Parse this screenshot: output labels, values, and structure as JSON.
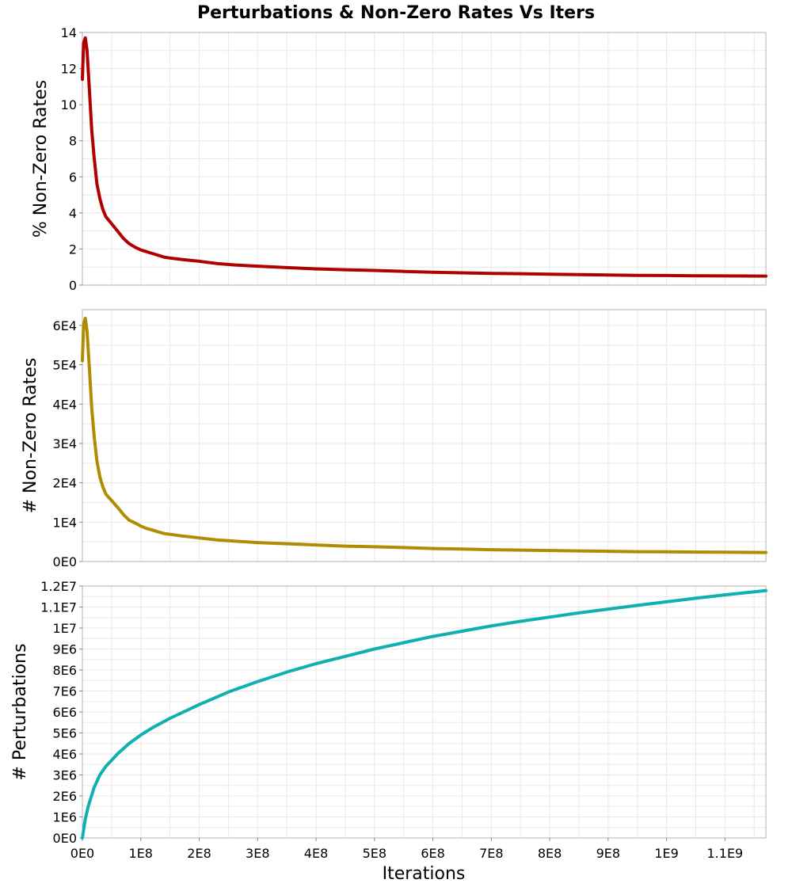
{
  "chart_data": {
    "type": "line",
    "title": "Perturbations & Non-Zero Rates Vs Iters",
    "xlabel": "Iterations",
    "x_ticks": [
      "0E0",
      "1E8",
      "2E8",
      "3E8",
      "4E8",
      "5E8",
      "6E8",
      "7E8",
      "8E8",
      "9E8",
      "1E9",
      "1.1E9"
    ],
    "xlim": [
      0,
      1170000000
    ],
    "grid": true,
    "panels": [
      {
        "ylabel": "% Non-Zero Rates",
        "ylim": [
          0,
          14
        ],
        "y_ticks": [
          "0",
          "2",
          "4",
          "6",
          "8",
          "10",
          "12",
          "14"
        ],
        "color": "#b00000",
        "series": [
          {
            "x": [
              0,
              2000000,
              5000000,
              8000000,
              12000000,
              16000000,
              20000000,
              25000000,
              30000000,
              35000000,
              40000000,
              45000000,
              50000000,
              60000000,
              70000000,
              80000000,
              90000000,
              100000000,
              110000000,
              120000000,
              130000000,
              140000000,
              150000000,
              170000000,
              200000000,
              230000000,
              260000000,
              300000000,
              350000000,
              400000000,
              450000000,
              500000000,
              550000000,
              600000000,
              650000000,
              700000000,
              750000000,
              800000000,
              850000000,
              900000000,
              950000000,
              1000000000,
              1050000000,
              1100000000,
              1170000000
            ],
            "y": [
              11.4,
              13.4,
              13.7,
              13.0,
              10.8,
              8.6,
              7.1,
              5.6,
              4.8,
              4.2,
              3.8,
              3.6,
              3.4,
              3.0,
              2.6,
              2.3,
              2.1,
              1.95,
              1.85,
              1.75,
              1.65,
              1.55,
              1.5,
              1.42,
              1.32,
              1.2,
              1.12,
              1.05,
              0.97,
              0.9,
              0.85,
              0.81,
              0.76,
              0.71,
              0.68,
              0.65,
              0.63,
              0.6,
              0.58,
              0.56,
              0.54,
              0.53,
              0.52,
              0.51,
              0.5
            ]
          }
        ]
      },
      {
        "ylabel": "# Non-Zero Rates",
        "ylim": [
          0,
          64000
        ],
        "y_ticks": [
          "0E0",
          "1E4",
          "2E4",
          "3E4",
          "4E4",
          "5E4",
          "6E4"
        ],
        "color": "#b08c00",
        "series": [
          {
            "x": [
              0,
              2000000,
              5000000,
              8000000,
              12000000,
              16000000,
              20000000,
              25000000,
              30000000,
              35000000,
              40000000,
              45000000,
              50000000,
              60000000,
              70000000,
              80000000,
              90000000,
              100000000,
              110000000,
              120000000,
              130000000,
              140000000,
              150000000,
              170000000,
              200000000,
              230000000,
              260000000,
              300000000,
              350000000,
              400000000,
              450000000,
              500000000,
              550000000,
              600000000,
              650000000,
              700000000,
              750000000,
              800000000,
              850000000,
              900000000,
              950000000,
              1000000000,
              1050000000,
              1100000000,
              1170000000
            ],
            "y": [
              51000,
              60000,
              61800,
              58500,
              49000,
              39000,
              32000,
              25500,
              21500,
              19000,
              17200,
              16300,
              15500,
              13800,
              12000,
              10500,
              9800,
              9000,
              8400,
              8000,
              7500,
              7100,
              6900,
              6500,
              6000,
              5500,
              5200,
              4800,
              4500,
              4200,
              3900,
              3750,
              3550,
              3300,
              3150,
              3000,
              2900,
              2800,
              2700,
              2600,
              2500,
              2450,
              2400,
              2350,
              2300
            ]
          }
        ]
      },
      {
        "ylabel": "# Perturbations",
        "ylim": [
          0,
          12000000
        ],
        "y_ticks": [
          "0E0",
          "1E6",
          "2E6",
          "3E6",
          "4E6",
          "5E6",
          "6E6",
          "7E6",
          "8E6",
          "9E6",
          "1E7",
          "1.1E7",
          "1.2E7"
        ],
        "color": "#10b0b0",
        "series": [
          {
            "x": [
              0,
              5000000,
              10000000,
              20000000,
              30000000,
              40000000,
              50000000,
              60000000,
              80000000,
              100000000,
              120000000,
              150000000,
              200000000,
              250000000,
              300000000,
              350000000,
              400000000,
              450000000,
              500000000,
              550000000,
              600000000,
              650000000,
              700000000,
              750000000,
              800000000,
              850000000,
              900000000,
              950000000,
              1000000000,
              1050000000,
              1100000000,
              1170000000
            ],
            "y": [
              0,
              900000,
              1500000,
              2400000,
              3000000,
              3400000,
              3700000,
              4000000,
              4500000,
              4900000,
              5250000,
              5700000,
              6350000,
              6950000,
              7450000,
              7900000,
              8300000,
              8650000,
              9000000,
              9300000,
              9600000,
              9850000,
              10100000,
              10320000,
              10520000,
              10720000,
              10900000,
              11080000,
              11250000,
              11420000,
              11580000,
              11780000
            ]
          }
        ]
      }
    ]
  }
}
